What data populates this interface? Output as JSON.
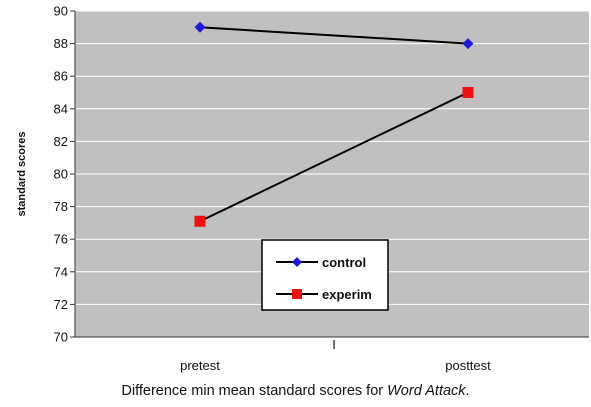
{
  "chart_data": {
    "type": "line",
    "title": "",
    "ylabel": "standard scores",
    "xlabel": "",
    "categories": [
      "pretest",
      "posttest"
    ],
    "middle_tick_label": "I",
    "ylim": [
      70,
      90
    ],
    "ytick_step": 2,
    "grid": true,
    "legend_position": "bottom-center",
    "series": [
      {
        "name": "control",
        "values": [
          89,
          88
        ],
        "color": "#1a1adc",
        "marker": "diamond"
      },
      {
        "name": "experim",
        "values": [
          77.1,
          85
        ],
        "color": "#ee1111",
        "marker": "square"
      }
    ],
    "plot_background": "#c0c0c0",
    "line_color": "#000000"
  },
  "caption": {
    "prefix": "Difference min mean standard scores for ",
    "emphasis": "Word Attack",
    "suffix": "."
  }
}
